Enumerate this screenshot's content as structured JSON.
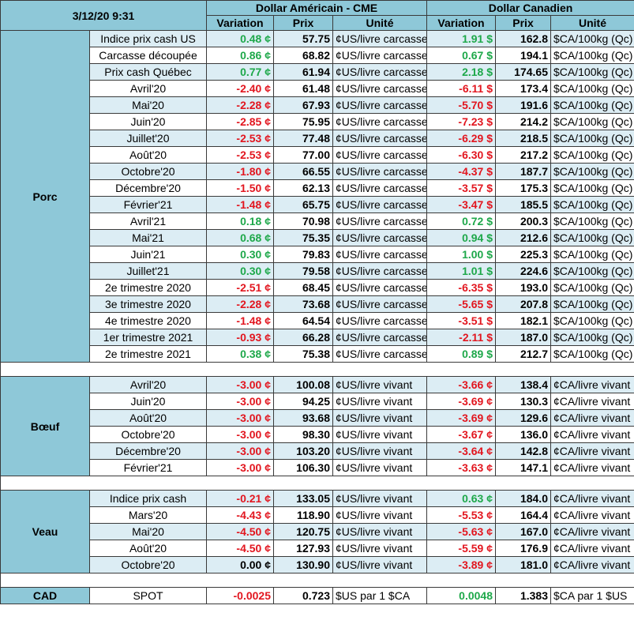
{
  "header": {
    "timestamp": "3/12/20 9:31",
    "us_group": "Dollar Américain - CME",
    "ca_group": "Dollar Canadien",
    "variation_label": "Variation",
    "price_label": "Prix",
    "unit_label": "Unité"
  },
  "porc": {
    "label": "Porc",
    "rows": [
      {
        "contract": "Indice prix cash US",
        "us_var": "0.48 ¢",
        "us_dir": "up",
        "us_price": "57.75",
        "us_unit": "¢US/livre carcasse",
        "ca_var": "1.91 $",
        "ca_dir": "up",
        "ca_price": "162.8",
        "ca_unit": "$CA/100kg (Qc)"
      },
      {
        "contract": "Carcasse découpée",
        "us_var": "0.86 ¢",
        "us_dir": "up",
        "us_price": "68.82",
        "us_unit": "¢US/livre carcasse",
        "ca_var": "0.67 $",
        "ca_dir": "up",
        "ca_price": "194.1",
        "ca_unit": "$CA/100kg (Qc)"
      },
      {
        "contract": "Prix cash Québec",
        "us_var": "0.77 ¢",
        "us_dir": "up",
        "us_price": "61.94",
        "us_unit": "¢US/livre carcasse",
        "ca_var": "2.18 $",
        "ca_dir": "up",
        "ca_price": "174.65",
        "ca_unit": "$CA/100kg (Qc)"
      },
      {
        "contract": "Avril'20",
        "us_var": "-2.40 ¢",
        "us_dir": "down",
        "us_price": "61.48",
        "us_unit": "¢US/livre carcasse",
        "ca_var": "-6.11 $",
        "ca_dir": "down",
        "ca_price": "173.4",
        "ca_unit": "$CA/100kg (Qc)"
      },
      {
        "contract": "Mai'20",
        "us_var": "-2.28 ¢",
        "us_dir": "down",
        "us_price": "67.93",
        "us_unit": "¢US/livre carcasse",
        "ca_var": "-5.70 $",
        "ca_dir": "down",
        "ca_price": "191.6",
        "ca_unit": "$CA/100kg (Qc)"
      },
      {
        "contract": "Juin'20",
        "us_var": "-2.85 ¢",
        "us_dir": "down",
        "us_price": "75.95",
        "us_unit": "¢US/livre carcasse",
        "ca_var": "-7.23 $",
        "ca_dir": "down",
        "ca_price": "214.2",
        "ca_unit": "$CA/100kg (Qc)"
      },
      {
        "contract": "Juillet'20",
        "us_var": "-2.53 ¢",
        "us_dir": "down",
        "us_price": "77.48",
        "us_unit": "¢US/livre carcasse",
        "ca_var": "-6.29 $",
        "ca_dir": "down",
        "ca_price": "218.5",
        "ca_unit": "$CA/100kg (Qc)"
      },
      {
        "contract": "Août'20",
        "us_var": "-2.53 ¢",
        "us_dir": "down",
        "us_price": "77.00",
        "us_unit": "¢US/livre carcasse",
        "ca_var": "-6.30 $",
        "ca_dir": "down",
        "ca_price": "217.2",
        "ca_unit": "$CA/100kg (Qc)"
      },
      {
        "contract": "Octobre'20",
        "us_var": "-1.80 ¢",
        "us_dir": "down",
        "us_price": "66.55",
        "us_unit": "¢US/livre carcasse",
        "ca_var": "-4.37 $",
        "ca_dir": "down",
        "ca_price": "187.7",
        "ca_unit": "$CA/100kg (Qc)"
      },
      {
        "contract": "Décembre'20",
        "us_var": "-1.50 ¢",
        "us_dir": "down",
        "us_price": "62.13",
        "us_unit": "¢US/livre carcasse",
        "ca_var": "-3.57 $",
        "ca_dir": "down",
        "ca_price": "175.3",
        "ca_unit": "$CA/100kg (Qc)"
      },
      {
        "contract": "Février'21",
        "us_var": "-1.48 ¢",
        "us_dir": "down",
        "us_price": "65.75",
        "us_unit": "¢US/livre carcasse",
        "ca_var": "-3.47 $",
        "ca_dir": "down",
        "ca_price": "185.5",
        "ca_unit": "$CA/100kg (Qc)"
      },
      {
        "contract": "Avril'21",
        "us_var": "0.18 ¢",
        "us_dir": "up",
        "us_price": "70.98",
        "us_unit": "¢US/livre carcasse",
        "ca_var": "0.72 $",
        "ca_dir": "up",
        "ca_price": "200.3",
        "ca_unit": "$CA/100kg (Qc)"
      },
      {
        "contract": "Mai'21",
        "us_var": "0.68 ¢",
        "us_dir": "up",
        "us_price": "75.35",
        "us_unit": "¢US/livre carcasse",
        "ca_var": "0.94 $",
        "ca_dir": "up",
        "ca_price": "212.6",
        "ca_unit": "$CA/100kg (Qc)"
      },
      {
        "contract": "Juin'21",
        "us_var": "0.30 ¢",
        "us_dir": "up",
        "us_price": "79.83",
        "us_unit": "¢US/livre carcasse",
        "ca_var": "1.00 $",
        "ca_dir": "up",
        "ca_price": "225.3",
        "ca_unit": "$CA/100kg (Qc)"
      },
      {
        "contract": "Juillet'21",
        "us_var": "0.30 ¢",
        "us_dir": "up",
        "us_price": "79.58",
        "us_unit": "¢US/livre carcasse",
        "ca_var": "1.01 $",
        "ca_dir": "up",
        "ca_price": "224.6",
        "ca_unit": "$CA/100kg (Qc)"
      },
      {
        "contract": "2e trimestre 2020",
        "us_var": "-2.51 ¢",
        "us_dir": "down",
        "us_price": "68.45",
        "us_unit": "¢US/livre carcasse",
        "ca_var": "-6.35 $",
        "ca_dir": "down",
        "ca_price": "193.0",
        "ca_unit": "$CA/100kg (Qc)"
      },
      {
        "contract": "3e trimestre 2020",
        "us_var": "-2.28 ¢",
        "us_dir": "down",
        "us_price": "73.68",
        "us_unit": "¢US/livre carcasse",
        "ca_var": "-5.65 $",
        "ca_dir": "down",
        "ca_price": "207.8",
        "ca_unit": "$CA/100kg (Qc)"
      },
      {
        "contract": "4e trimestre 2020",
        "us_var": "-1.48 ¢",
        "us_dir": "down",
        "us_price": "64.54",
        "us_unit": "¢US/livre carcasse",
        "ca_var": "-3.51 $",
        "ca_dir": "down",
        "ca_price": "182.1",
        "ca_unit": "$CA/100kg (Qc)"
      },
      {
        "contract": "1er trimestre 2021",
        "us_var": "-0.93 ¢",
        "us_dir": "down",
        "us_price": "66.28",
        "us_unit": "¢US/livre carcasse",
        "ca_var": "-2.11 $",
        "ca_dir": "down",
        "ca_price": "187.0",
        "ca_unit": "$CA/100kg (Qc)"
      },
      {
        "contract": "2e trimestre 2021",
        "us_var": "0.38 ¢",
        "us_dir": "up",
        "us_price": "75.38",
        "us_unit": "¢US/livre carcasse",
        "ca_var": "0.89 $",
        "ca_dir": "up",
        "ca_price": "212.7",
        "ca_unit": "$CA/100kg (Qc)"
      }
    ]
  },
  "boeuf": {
    "label": "Bœuf",
    "rows": [
      {
        "contract": "Avril'20",
        "us_var": "-3.00 ¢",
        "us_dir": "down",
        "us_price": "100.08",
        "us_unit": "¢US/livre vivant",
        "ca_var": "-3.66 ¢",
        "ca_dir": "down",
        "ca_price": "138.4",
        "ca_unit": "¢CA/livre vivant"
      },
      {
        "contract": "Juin'20",
        "us_var": "-3.00 ¢",
        "us_dir": "down",
        "us_price": "94.25",
        "us_unit": "¢US/livre vivant",
        "ca_var": "-3.69 ¢",
        "ca_dir": "down",
        "ca_price": "130.3",
        "ca_unit": "¢CA/livre vivant"
      },
      {
        "contract": "Août'20",
        "us_var": "-3.00 ¢",
        "us_dir": "down",
        "us_price": "93.68",
        "us_unit": "¢US/livre vivant",
        "ca_var": "-3.69 ¢",
        "ca_dir": "down",
        "ca_price": "129.6",
        "ca_unit": "¢CA/livre vivant"
      },
      {
        "contract": "Octobre'20",
        "us_var": "-3.00 ¢",
        "us_dir": "down",
        "us_price": "98.30",
        "us_unit": "¢US/livre vivant",
        "ca_var": "-3.67 ¢",
        "ca_dir": "down",
        "ca_price": "136.0",
        "ca_unit": "¢CA/livre vivant"
      },
      {
        "contract": "Décembre'20",
        "us_var": "-3.00 ¢",
        "us_dir": "down",
        "us_price": "103.20",
        "us_unit": "¢US/livre vivant",
        "ca_var": "-3.64 ¢",
        "ca_dir": "down",
        "ca_price": "142.8",
        "ca_unit": "¢CA/livre vivant"
      },
      {
        "contract": "Février'21",
        "us_var": "-3.00 ¢",
        "us_dir": "down",
        "us_price": "106.30",
        "us_unit": "¢US/livre vivant",
        "ca_var": "-3.63 ¢",
        "ca_dir": "down",
        "ca_price": "147.1",
        "ca_unit": "¢CA/livre vivant"
      }
    ]
  },
  "veau": {
    "label": "Veau",
    "rows": [
      {
        "contract": "Indice prix cash",
        "us_var": "-0.21 ¢",
        "us_dir": "down",
        "us_price": "133.05",
        "us_unit": "¢US/livre vivant",
        "ca_var": "0.63 ¢",
        "ca_dir": "up",
        "ca_price": "184.0",
        "ca_unit": "¢CA/livre vivant"
      },
      {
        "contract": "Mars'20",
        "us_var": "-4.43 ¢",
        "us_dir": "down",
        "us_price": "118.90",
        "us_unit": "¢US/livre vivant",
        "ca_var": "-5.53 ¢",
        "ca_dir": "down",
        "ca_price": "164.4",
        "ca_unit": "¢CA/livre vivant"
      },
      {
        "contract": "Mai'20",
        "us_var": "-4.50 ¢",
        "us_dir": "down",
        "us_price": "120.75",
        "us_unit": "¢US/livre vivant",
        "ca_var": "-5.63 ¢",
        "ca_dir": "down",
        "ca_price": "167.0",
        "ca_unit": "¢CA/livre vivant"
      },
      {
        "contract": "Août'20",
        "us_var": "-4.50 ¢",
        "us_dir": "down",
        "us_price": "127.93",
        "us_unit": "¢US/livre vivant",
        "ca_var": "-5.59 ¢",
        "ca_dir": "down",
        "ca_price": "176.9",
        "ca_unit": "¢CA/livre vivant"
      },
      {
        "contract": "Octobre'20",
        "us_var": "0.00 ¢",
        "us_dir": "flat",
        "us_price": "130.90",
        "us_unit": "¢US/livre vivant",
        "ca_var": "-3.89 ¢",
        "ca_dir": "down",
        "ca_price": "181.0",
        "ca_unit": "¢CA/livre vivant"
      }
    ]
  },
  "cad": {
    "label": "CAD",
    "contract": "SPOT",
    "us_var": "-0.0025",
    "us_dir": "down",
    "us_price": "0.723",
    "us_unit": "$US par 1 $CA",
    "ca_var": "0.0048",
    "ca_dir": "up",
    "ca_price": "1.383",
    "ca_unit": "$CA par 1 $US"
  },
  "colors": {
    "header_bg": "#8ec8d8",
    "stripe_bg": "#dcedf4",
    "positive": "#1ea84a",
    "negative": "#e2161f"
  }
}
